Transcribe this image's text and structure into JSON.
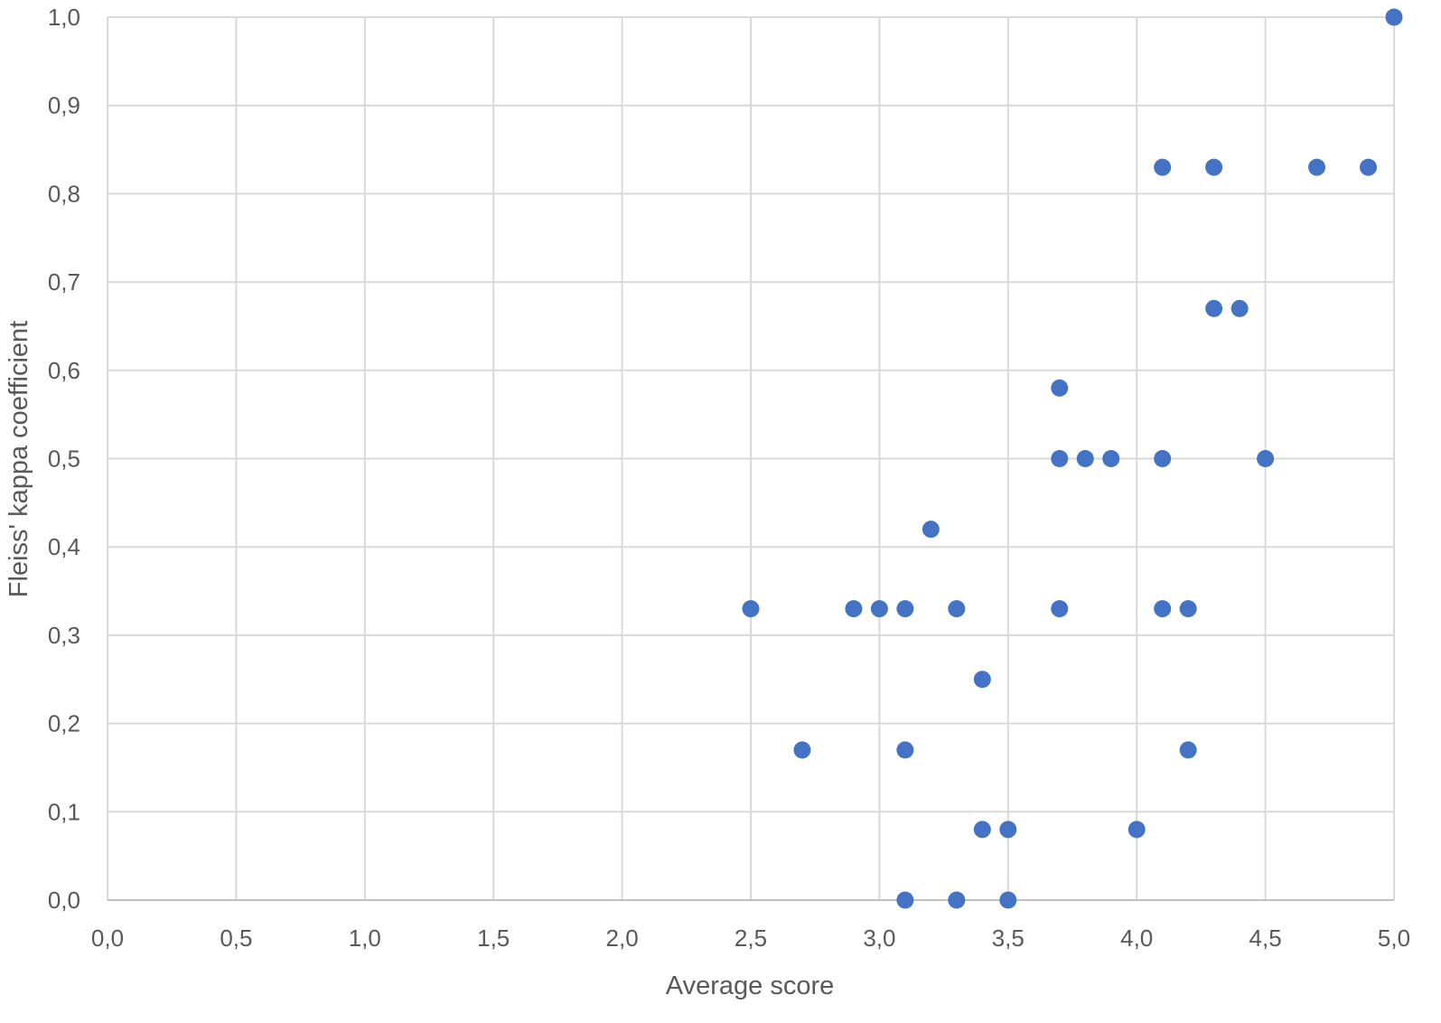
{
  "chart_data": {
    "type": "scatter",
    "title": "",
    "xlabel": "Average score",
    "ylabel": "Fleiss' kappa coefficient",
    "xlim": [
      0,
      5
    ],
    "ylim": [
      0,
      1
    ],
    "x_ticks": [
      "0,0",
      "0,5",
      "1,0",
      "1,5",
      "2,0",
      "2,5",
      "3,0",
      "3,5",
      "4,0",
      "4,5",
      "5,0"
    ],
    "y_ticks": [
      "0,0",
      "0,1",
      "0,2",
      "0,3",
      "0,4",
      "0,5",
      "0,6",
      "0,7",
      "0,8",
      "0,9",
      "1,0"
    ],
    "grid": true,
    "legend": "none",
    "colors": {
      "marker": "#4472C4",
      "grid": "#D9D9D9",
      "text": "#595959"
    },
    "series": [
      {
        "points": [
          {
            "x": 5.0,
            "y": 1.0
          },
          {
            "x": 4.1,
            "y": 0.83
          },
          {
            "x": 4.3,
            "y": 0.83
          },
          {
            "x": 4.7,
            "y": 0.83
          },
          {
            "x": 4.9,
            "y": 0.83
          },
          {
            "x": 4.3,
            "y": 0.67
          },
          {
            "x": 4.4,
            "y": 0.67
          },
          {
            "x": 3.7,
            "y": 0.58
          },
          {
            "x": 3.7,
            "y": 0.5
          },
          {
            "x": 3.8,
            "y": 0.5
          },
          {
            "x": 3.9,
            "y": 0.5
          },
          {
            "x": 4.1,
            "y": 0.5
          },
          {
            "x": 4.5,
            "y": 0.5
          },
          {
            "x": 3.2,
            "y": 0.42
          },
          {
            "x": 2.5,
            "y": 0.33
          },
          {
            "x": 2.9,
            "y": 0.33
          },
          {
            "x": 3.0,
            "y": 0.33
          },
          {
            "x": 3.1,
            "y": 0.33
          },
          {
            "x": 3.3,
            "y": 0.33
          },
          {
            "x": 3.7,
            "y": 0.33
          },
          {
            "x": 4.1,
            "y": 0.33
          },
          {
            "x": 4.2,
            "y": 0.33
          },
          {
            "x": 3.4,
            "y": 0.25
          },
          {
            "x": 2.7,
            "y": 0.17
          },
          {
            "x": 3.1,
            "y": 0.17
          },
          {
            "x": 4.2,
            "y": 0.17
          },
          {
            "x": 3.4,
            "y": 0.08
          },
          {
            "x": 3.5,
            "y": 0.08
          },
          {
            "x": 4.0,
            "y": 0.08
          },
          {
            "x": 3.1,
            "y": 0.0
          },
          {
            "x": 3.3,
            "y": 0.0
          },
          {
            "x": 3.5,
            "y": 0.0
          }
        ]
      }
    ]
  }
}
